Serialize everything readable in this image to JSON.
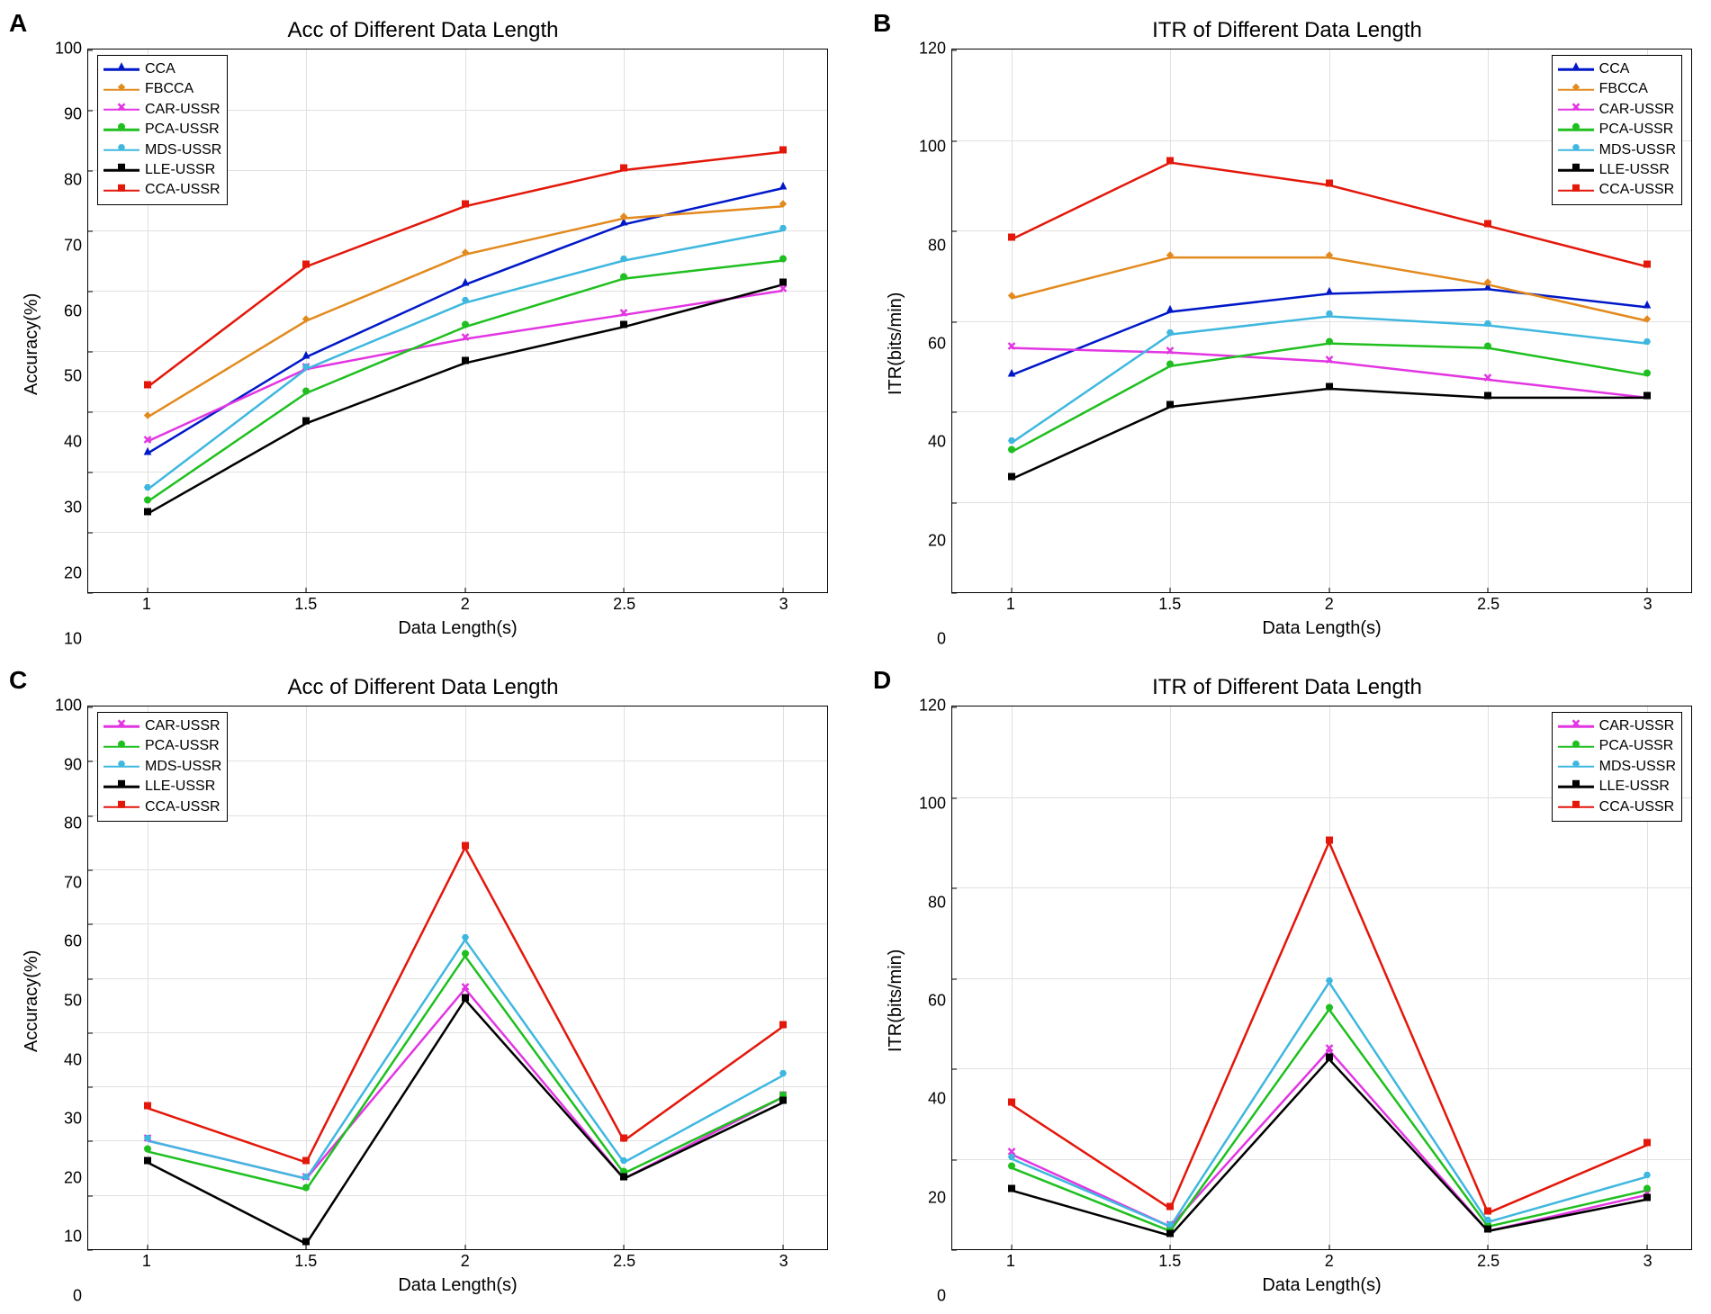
{
  "figure": {
    "background_color": "#ffffff",
    "grid_color": "#e0e0e0",
    "axis_color": "#000000",
    "font_family": "Arial",
    "title_fontsize": 24,
    "label_fontsize": 20,
    "tick_fontsize": 18,
    "legend_fontsize": 16,
    "line_width": 2.5,
    "marker_size": 7
  },
  "series_styles": {
    "CCA": {
      "color": "#0018c8",
      "marker": "triangle"
    },
    "FBCCA": {
      "color": "#e28a1e",
      "marker": "diamond"
    },
    "CAR-USSR": {
      "color": "#e236e2",
      "marker": "x"
    },
    "PCA-USSR": {
      "color": "#1fbf1f",
      "marker": "circle"
    },
    "MDS-USSR": {
      "color": "#3fb7df",
      "marker": "hex"
    },
    "LLE-USSR": {
      "color": "#000000",
      "marker": "square"
    },
    "CCA-USSR": {
      "color": "#e3170a",
      "marker": "square"
    }
  },
  "panels": {
    "A": {
      "letter": "A",
      "title": "Acc of Different Data Length",
      "xlabel": "Data Length(s)",
      "ylabel": "Accuracy(%)",
      "xlim": [
        1,
        3
      ],
      "ylim": [
        10,
        100
      ],
      "xticks": [
        1,
        1.5,
        2,
        2.5,
        3
      ],
      "yticks": [
        10,
        20,
        30,
        40,
        50,
        60,
        70,
        80,
        90,
        100
      ],
      "grid": true,
      "legend_pos": "top-left",
      "x": [
        1,
        1.5,
        2,
        2.5,
        3
      ],
      "series": [
        {
          "name": "CCA",
          "y": [
            33,
            49,
            61,
            71,
            77
          ]
        },
        {
          "name": "FBCCA",
          "y": [
            39,
            55,
            66,
            72,
            74
          ]
        },
        {
          "name": "CAR-USSR",
          "y": [
            35,
            47,
            52,
            56,
            60
          ]
        },
        {
          "name": "PCA-USSR",
          "y": [
            25,
            43,
            54,
            62,
            65
          ]
        },
        {
          "name": "MDS-USSR",
          "y": [
            27,
            47,
            58,
            65,
            70
          ]
        },
        {
          "name": "LLE-USSR",
          "y": [
            23,
            38,
            48,
            54,
            61
          ]
        },
        {
          "name": "CCA-USSR",
          "y": [
            44,
            64,
            74,
            80,
            83
          ]
        }
      ]
    },
    "B": {
      "letter": "B",
      "title": "ITR of Different Data Length",
      "xlabel": "Data Length(s)",
      "ylabel": "ITR(bits/min)",
      "xlim": [
        1,
        3
      ],
      "ylim": [
        0,
        120
      ],
      "xticks": [
        1,
        1.5,
        2,
        2.5,
        3
      ],
      "yticks": [
        0,
        20,
        40,
        60,
        80,
        100,
        120
      ],
      "grid": true,
      "legend_pos": "top-right",
      "x": [
        1,
        1.5,
        2,
        2.5,
        3
      ],
      "series": [
        {
          "name": "CCA",
          "y": [
            48,
            62,
            66,
            67,
            63
          ]
        },
        {
          "name": "FBCCA",
          "y": [
            65,
            74,
            74,
            68,
            60
          ]
        },
        {
          "name": "CAR-USSR",
          "y": [
            54,
            53,
            51,
            47,
            43
          ]
        },
        {
          "name": "PCA-USSR",
          "y": [
            31,
            50,
            55,
            54,
            48
          ]
        },
        {
          "name": "MDS-USSR",
          "y": [
            33,
            57,
            61,
            59,
            55
          ]
        },
        {
          "name": "LLE-USSR",
          "y": [
            25,
            41,
            45,
            43,
            43
          ]
        },
        {
          "name": "CCA-USSR",
          "y": [
            78,
            95,
            90,
            81,
            72
          ]
        }
      ]
    },
    "C": {
      "letter": "C",
      "title": "Acc of Different Data Length",
      "xlabel": "Data Length(s)",
      "ylabel": "Accuracy(%)",
      "xlim": [
        1,
        3
      ],
      "ylim": [
        0,
        100
      ],
      "xticks": [
        1,
        1.5,
        2,
        2.5,
        3
      ],
      "yticks": [
        0,
        10,
        20,
        30,
        40,
        50,
        60,
        70,
        80,
        90,
        100
      ],
      "grid": true,
      "legend_pos": "top-left",
      "x": [
        1,
        1.5,
        2,
        2.5,
        3
      ],
      "series": [
        {
          "name": "CAR-USSR",
          "y": [
            20,
            13,
            48,
            13,
            28
          ]
        },
        {
          "name": "PCA-USSR",
          "y": [
            18,
            11,
            54,
            14,
            28
          ]
        },
        {
          "name": "MDS-USSR",
          "y": [
            20,
            13,
            57,
            16,
            32
          ]
        },
        {
          "name": "LLE-USSR",
          "y": [
            16,
            1,
            46,
            13,
            27
          ]
        },
        {
          "name": "CCA-USSR",
          "y": [
            26,
            16,
            74,
            20,
            41
          ]
        }
      ]
    },
    "D": {
      "letter": "D",
      "title": "ITR of Different Data Length",
      "xlabel": "Data Length(s)",
      "ylabel": "ITR(bits/min)",
      "xlim": [
        1,
        3
      ],
      "ylim": [
        0,
        120
      ],
      "xticks": [
        1,
        1.5,
        2,
        2.5,
        3
      ],
      "yticks": [
        0,
        20,
        40,
        60,
        80,
        100,
        120
      ],
      "grid": true,
      "legend_pos": "top-right",
      "x": [
        1,
        1.5,
        2,
        2.5,
        3
      ],
      "series": [
        {
          "name": "CAR-USSR",
          "y": [
            21,
            5,
            44,
            4,
            12
          ]
        },
        {
          "name": "PCA-USSR",
          "y": [
            18,
            4,
            53,
            5,
            13
          ]
        },
        {
          "name": "MDS-USSR",
          "y": [
            20,
            5,
            59,
            6,
            16
          ]
        },
        {
          "name": "LLE-USSR",
          "y": [
            13,
            3,
            42,
            4,
            11
          ]
        },
        {
          "name": "CCA-USSR",
          "y": [
            32,
            9,
            90,
            8,
            23
          ]
        }
      ]
    }
  }
}
